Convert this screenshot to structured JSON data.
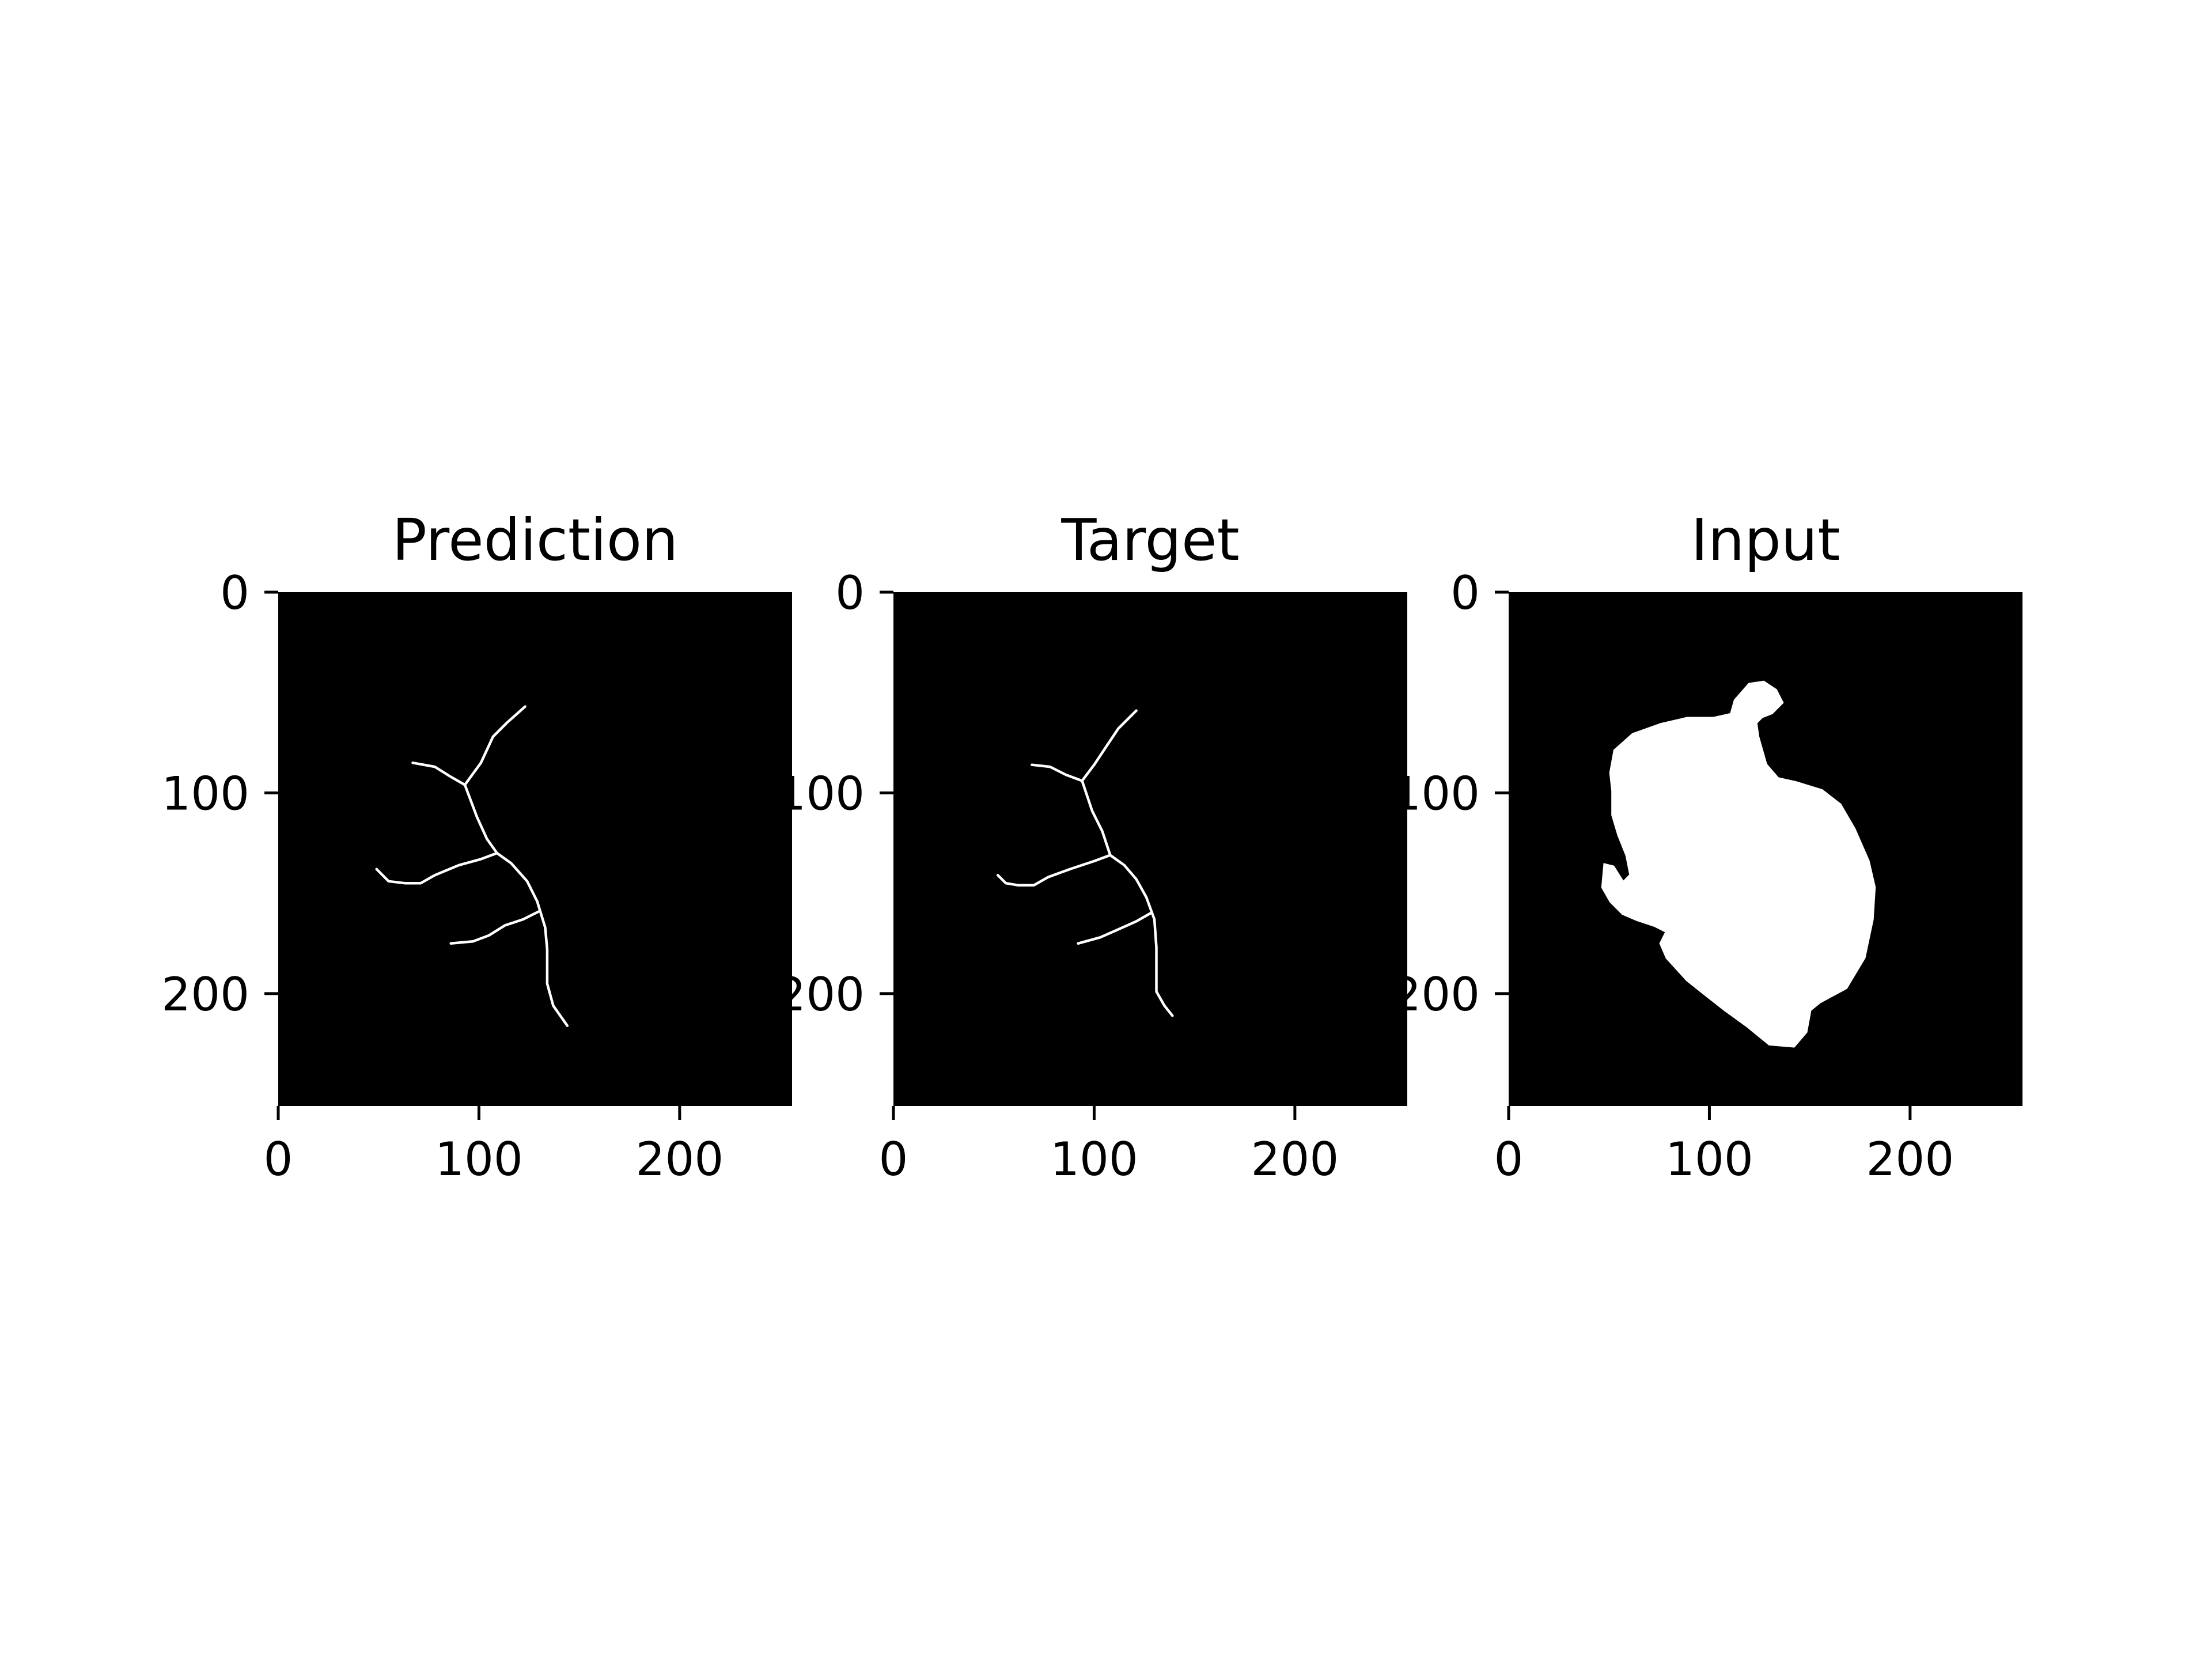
{
  "figure": {
    "background": "#ffffff",
    "image_background": "#000000",
    "foreground": "#ffffff"
  },
  "chart_data": [
    {
      "type": "image",
      "title": "Prediction",
      "xlabel": "",
      "ylabel": "",
      "xlim": [
        0,
        256
      ],
      "ylim": [
        256,
        0
      ],
      "xticks": [
        0,
        100,
        200
      ],
      "yticks": [
        0,
        100,
        200
      ],
      "xtick_labels": [
        "0",
        "100",
        "200"
      ],
      "ytick_labels": [
        "0",
        "100",
        "200"
      ],
      "mask_kind": "skeleton",
      "mask_shapes": [
        [
          [
            123,
            57
          ],
          [
            114,
            65
          ],
          [
            107,
            72
          ],
          [
            101,
            85
          ],
          [
            93,
            96
          ]
        ],
        [
          [
            67,
            85
          ],
          [
            78,
            87
          ],
          [
            86,
            92
          ],
          [
            93,
            96
          ]
        ],
        [
          [
            93,
            96
          ],
          [
            99,
            112
          ],
          [
            104,
            123
          ],
          [
            109,
            130
          ]
        ],
        [
          [
            49,
            138
          ],
          [
            55,
            144
          ],
          [
            63,
            145
          ],
          [
            71,
            145
          ],
          [
            78,
            141
          ],
          [
            90,
            136
          ],
          [
            101,
            133
          ],
          [
            109,
            130
          ]
        ],
        [
          [
            109,
            130
          ],
          [
            116,
            135
          ],
          [
            124,
            144
          ],
          [
            129,
            154
          ],
          [
            133,
            167
          ],
          [
            134,
            178
          ],
          [
            134,
            195
          ],
          [
            137,
            206
          ],
          [
            144,
            216
          ]
        ],
        [
          [
            86,
            175
          ],
          [
            97,
            174
          ],
          [
            105,
            171
          ],
          [
            113,
            166
          ],
          [
            122,
            163
          ],
          [
            130,
            159
          ]
        ]
      ]
    },
    {
      "type": "image",
      "title": "Target",
      "xlabel": "",
      "ylabel": "",
      "xlim": [
        0,
        256
      ],
      "ylim": [
        256,
        0
      ],
      "xticks": [
        0,
        100,
        200
      ],
      "yticks": [
        0,
        100,
        200
      ],
      "xtick_labels": [
        "0",
        "100",
        "200"
      ],
      "ytick_labels": [
        "0",
        "100",
        "200"
      ],
      "mask_kind": "skeleton",
      "mask_shapes": [
        [
          [
            121,
            59
          ],
          [
            112,
            68
          ],
          [
            106,
            77
          ],
          [
            100,
            86
          ],
          [
            94,
            94
          ]
        ],
        [
          [
            69,
            86
          ],
          [
            78,
            87
          ],
          [
            86,
            91
          ],
          [
            94,
            94
          ]
        ],
        [
          [
            94,
            94
          ],
          [
            99,
            109
          ],
          [
            104,
            119
          ],
          [
            108,
            131
          ]
        ],
        [
          [
            52,
            141
          ],
          [
            56,
            145
          ],
          [
            62,
            146
          ],
          [
            70,
            146
          ],
          [
            77,
            142
          ],
          [
            88,
            138
          ],
          [
            100,
            134
          ],
          [
            108,
            131
          ]
        ],
        [
          [
            108,
            131
          ],
          [
            115,
            136
          ],
          [
            121,
            143
          ],
          [
            126,
            152
          ],
          [
            130,
            163
          ],
          [
            131,
            177
          ],
          [
            131,
            199
          ],
          [
            135,
            206
          ],
          [
            139,
            211
          ]
        ],
        [
          [
            92,
            175
          ],
          [
            103,
            172
          ],
          [
            112,
            168
          ],
          [
            121,
            164
          ],
          [
            128,
            160
          ]
        ]
      ]
    },
    {
      "type": "image",
      "title": "Input",
      "xlabel": "",
      "ylabel": "",
      "xlim": [
        0,
        256
      ],
      "ylim": [
        256,
        0
      ],
      "xticks": [
        0,
        100,
        200
      ],
      "yticks": [
        0,
        100,
        200
      ],
      "xtick_labels": [
        "0",
        "100",
        "200"
      ],
      "ytick_labels": [
        "0",
        "100",
        "200"
      ],
      "mask_kind": "filled",
      "mask_shapes": [
        [
          [
            120,
            46
          ],
          [
            127,
            45
          ],
          [
            133,
            49
          ],
          [
            136,
            55
          ],
          [
            131,
            60
          ],
          [
            126,
            62
          ],
          [
            123,
            65
          ],
          [
            124,
            72
          ],
          [
            128,
            86
          ],
          [
            134,
            93
          ],
          [
            143,
            95
          ],
          [
            156,
            99
          ],
          [
            165,
            106
          ],
          [
            172,
            118
          ],
          [
            179,
            134
          ],
          [
            182,
            147
          ],
          [
            181,
            163
          ],
          [
            177,
            182
          ],
          [
            168,
            197
          ],
          [
            155,
            204
          ],
          [
            150,
            208
          ],
          [
            148,
            219
          ],
          [
            142,
            226
          ],
          [
            130,
            225
          ],
          [
            119,
            216
          ],
          [
            108,
            208
          ],
          [
            99,
            201
          ],
          [
            89,
            193
          ],
          [
            79,
            182
          ],
          [
            76,
            175
          ],
          [
            79,
            169
          ],
          [
            73,
            166
          ],
          [
            64,
            163
          ],
          [
            57,
            160
          ],
          [
            51,
            154
          ],
          [
            47,
            147
          ],
          [
            48,
            136
          ],
          [
            52,
            137
          ],
          [
            57,
            145
          ],
          [
            61,
            141
          ],
          [
            59,
            131
          ],
          [
            55,
            121
          ],
          [
            52,
            111
          ],
          [
            52,
            99
          ],
          [
            51,
            90
          ],
          [
            53,
            79
          ],
          [
            62,
            71
          ],
          [
            76,
            66
          ],
          [
            89,
            63
          ],
          [
            102,
            63
          ],
          [
            111,
            61
          ],
          [
            113,
            54
          ]
        ]
      ]
    }
  ]
}
